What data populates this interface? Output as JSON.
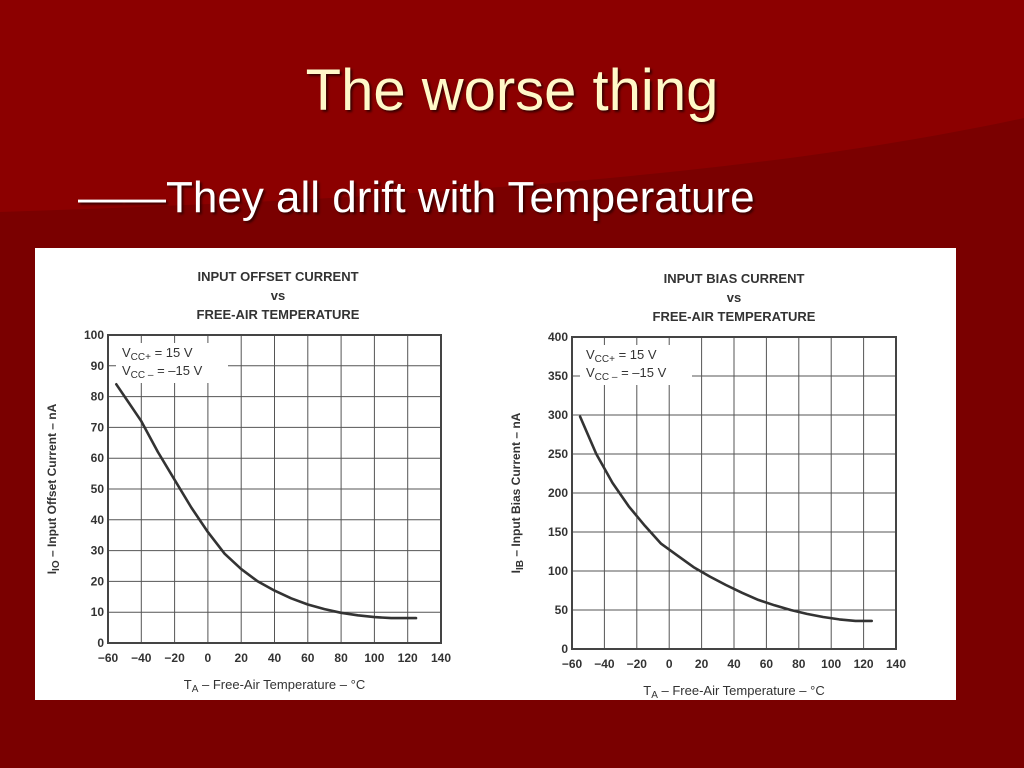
{
  "slide": {
    "title": "The worse thing",
    "subtitle": "——They all drift with Temperature"
  },
  "colors": {
    "background": "#7a0000",
    "title": "#fff8c8",
    "subtitle": "#ffffff",
    "plot_line": "#333333"
  },
  "chart_data": [
    {
      "type": "line",
      "title": [
        "INPUT OFFSET CURRENT",
        "vs",
        "FREE-AIR TEMPERATURE"
      ],
      "xlabel_main": "T",
      "xlabel_sub": "A",
      "xlabel_rest": " – Free-Air Temperature – °C",
      "ylabel_main": "I",
      "ylabel_sub": "IO",
      "ylabel_rest": " – Input Offset Current – nA",
      "xlim": [
        -60,
        140
      ],
      "ylim": [
        0,
        100
      ],
      "xticks": [
        -60,
        -40,
        -20,
        0,
        20,
        40,
        60,
        80,
        100,
        120,
        140
      ],
      "xtick_labels": [
        "−60",
        "−40",
        "−20",
        "0",
        "20",
        "40",
        "60",
        "80",
        "100",
        "120",
        "140"
      ],
      "yticks": [
        0,
        10,
        20,
        30,
        40,
        50,
        60,
        70,
        80,
        90,
        100
      ],
      "ytick_labels": [
        "0",
        "10",
        "20",
        "30",
        "40",
        "50",
        "60",
        "70",
        "80",
        "90",
        "100"
      ],
      "grid": true,
      "annotation": [
        {
          "main": "V",
          "sub": "CC+",
          "rest": " = 15 V"
        },
        {
          "main": "V",
          "sub": "CC –",
          "rest": " = –15 V"
        }
      ],
      "annotation_placement": "top-left",
      "series": [
        {
          "x": [
            -55,
            -40,
            -30,
            -20,
            -10,
            0,
            10,
            20,
            30,
            40,
            50,
            60,
            70,
            80,
            90,
            100,
            110,
            125
          ],
          "y": [
            84,
            72,
            62,
            53,
            44,
            36,
            29,
            24,
            20,
            17,
            14.5,
            12.5,
            11,
            9.8,
            9,
            8.4,
            8.1,
            8.1
          ]
        }
      ]
    },
    {
      "type": "line",
      "title": [
        "INPUT BIAS CURRENT",
        "vs",
        "FREE-AIR TEMPERATURE"
      ],
      "xlabel_main": "T",
      "xlabel_sub": "A",
      "xlabel_rest": " – Free-Air Temperature – °C",
      "ylabel_main": "I",
      "ylabel_sub": "IB",
      "ylabel_rest": " – Input Bias Current – nA",
      "xlim": [
        -60,
        140
      ],
      "ylim": [
        0,
        400
      ],
      "xticks": [
        -60,
        -40,
        -20,
        0,
        20,
        40,
        60,
        80,
        100,
        120,
        140
      ],
      "xtick_labels": [
        "−60",
        "−40",
        "−20",
        "0",
        "20",
        "40",
        "60",
        "80",
        "100",
        "120",
        "140"
      ],
      "yticks": [
        0,
        50,
        100,
        150,
        200,
        250,
        300,
        350,
        400
      ],
      "ytick_labels": [
        "0",
        "50",
        "100",
        "150",
        "200",
        "250",
        "300",
        "350",
        "400"
      ],
      "grid": true,
      "annotation": [
        {
          "main": "V",
          "sub": "CC+",
          "rest": " = 15 V"
        },
        {
          "main": "V",
          "sub": "CC –",
          "rest": " = –15 V"
        }
      ],
      "annotation_placement": "top-left",
      "series": [
        {
          "x": [
            -55,
            -45,
            -35,
            -25,
            -15,
            -5,
            5,
            15,
            25,
            35,
            45,
            55,
            65,
            75,
            85,
            95,
            105,
            115,
            125
          ],
          "y": [
            298,
            250,
            213,
            183,
            158,
            135,
            120,
            105,
            93,
            82,
            72,
            63,
            56,
            50,
            45,
            41,
            38,
            36,
            36
          ]
        }
      ]
    }
  ]
}
